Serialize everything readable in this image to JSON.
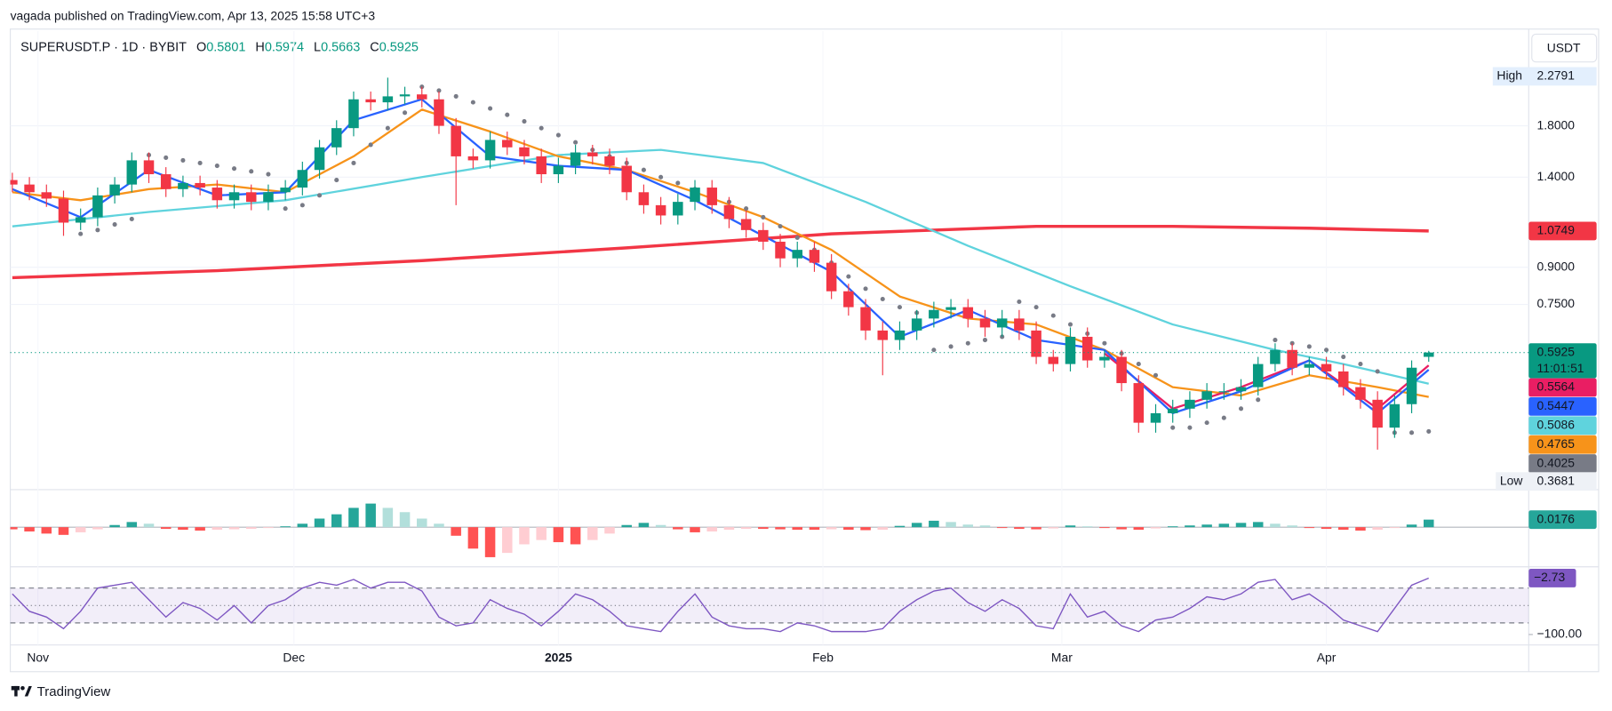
{
  "header": "vagada published on TradingView.com, Apr 13, 2025 15:58 UTC+3",
  "brand": "TradingView",
  "chart_data": {
    "type": "candlestick",
    "title": "SUPERUSDT.P · 1D · BYBIT",
    "ohlc_labels": [
      "O",
      "H",
      "L",
      "C"
    ],
    "currency": "USDT",
    "high_label": "High",
    "low_label": "Low",
    "countdown": "11:01:51",
    "log": true,
    "up_color": "#089981",
    "down_color": "#f23645",
    "open": [
      1.38,
      1.35,
      1.3,
      1.26,
      1.12,
      1.15,
      1.28,
      1.35,
      1.52,
      1.42,
      1.32,
      1.36,
      1.33,
      1.25,
      1.3,
      1.24,
      1.3,
      1.33,
      1.45,
      1.62,
      1.78,
      2.05,
      2.02,
      2.08,
      2.1,
      2.05,
      1.8,
      1.55,
      1.52,
      1.68,
      1.62,
      1.55,
      1.42,
      1.48,
      1.58,
      1.55,
      1.48,
      1.3,
      1.22,
      1.16,
      1.24,
      1.33,
      1.22,
      1.14,
      1.08,
      1.02,
      0.94,
      0.98,
      0.92,
      0.8,
      0.74,
      0.66,
      0.63,
      0.66,
      0.7,
      0.73,
      0.74,
      0.7,
      0.67,
      0.7,
      0.66,
      0.58,
      0.56,
      0.64,
      0.57,
      0.58,
      0.51,
      0.42,
      0.44,
      0.45,
      0.47,
      0.49,
      0.49,
      0.5,
      0.56,
      0.6,
      0.55,
      0.56,
      0.54,
      0.5,
      0.47,
      0.41,
      0.46,
      0.5801
    ],
    "high": [
      1.43,
      1.4,
      1.35,
      1.31,
      1.2,
      1.33,
      1.4,
      1.58,
      1.58,
      1.47,
      1.41,
      1.41,
      1.38,
      1.35,
      1.35,
      1.35,
      1.38,
      1.51,
      1.68,
      1.85,
      2.13,
      2.13,
      2.2791,
      2.18,
      2.18,
      2.13,
      1.87,
      1.61,
      1.75,
      1.75,
      1.68,
      1.61,
      1.54,
      1.64,
      1.64,
      1.61,
      1.54,
      1.35,
      1.27,
      1.29,
      1.38,
      1.38,
      1.27,
      1.19,
      1.12,
      1.06,
      1.02,
      1.02,
      0.96,
      0.83,
      0.77,
      0.69,
      0.69,
      0.73,
      0.76,
      0.77,
      0.77,
      0.73,
      0.73,
      0.73,
      0.69,
      0.6,
      0.67,
      0.67,
      0.6,
      0.6,
      0.53,
      0.46,
      0.47,
      0.49,
      0.51,
      0.51,
      0.52,
      0.58,
      0.62,
      0.62,
      0.58,
      0.58,
      0.56,
      0.52,
      0.49,
      0.48,
      0.57,
      0.5974
    ],
    "low": [
      1.3,
      1.25,
      1.21,
      1.05,
      1.08,
      1.1,
      1.23,
      1.3,
      1.36,
      1.27,
      1.27,
      1.28,
      1.2,
      1.2,
      1.19,
      1.19,
      1.25,
      1.28,
      1.39,
      1.56,
      1.71,
      1.94,
      1.94,
      2.0,
      1.97,
      1.73,
      1.22,
      1.46,
      1.46,
      1.56,
      1.49,
      1.36,
      1.36,
      1.42,
      1.49,
      1.42,
      1.25,
      1.17,
      1.11,
      1.11,
      1.19,
      1.17,
      1.09,
      1.04,
      0.98,
      0.9,
      0.9,
      0.88,
      0.77,
      0.71,
      0.63,
      0.53,
      0.6,
      0.63,
      0.67,
      0.7,
      0.67,
      0.64,
      0.64,
      0.63,
      0.56,
      0.54,
      0.54,
      0.55,
      0.55,
      0.49,
      0.4,
      0.4,
      0.42,
      0.43,
      0.45,
      0.47,
      0.47,
      0.48,
      0.54,
      0.53,
      0.53,
      0.52,
      0.48,
      0.45,
      0.3681,
      0.39,
      0.44,
      0.5663
    ],
    "close": [
      1.35,
      1.3,
      1.26,
      1.12,
      1.15,
      1.28,
      1.35,
      1.52,
      1.42,
      1.32,
      1.36,
      1.33,
      1.25,
      1.3,
      1.24,
      1.3,
      1.33,
      1.45,
      1.62,
      1.78,
      2.05,
      2.02,
      2.08,
      2.1,
      2.05,
      1.8,
      1.55,
      1.52,
      1.68,
      1.62,
      1.55,
      1.42,
      1.48,
      1.58,
      1.55,
      1.48,
      1.3,
      1.22,
      1.16,
      1.24,
      1.33,
      1.22,
      1.14,
      1.08,
      1.02,
      0.94,
      0.98,
      0.92,
      0.8,
      0.74,
      0.66,
      0.63,
      0.66,
      0.7,
      0.73,
      0.74,
      0.7,
      0.67,
      0.7,
      0.66,
      0.58,
      0.56,
      0.64,
      0.57,
      0.58,
      0.51,
      0.42,
      0.44,
      0.45,
      0.47,
      0.49,
      0.49,
      0.5,
      0.56,
      0.6,
      0.55,
      0.56,
      0.54,
      0.5,
      0.47,
      0.41,
      0.46,
      0.55,
      0.5925
    ],
    "xlim": [
      0,
      88.86
    ],
    "xticks": [
      {
        "value": 1.5,
        "label": "Nov"
      },
      {
        "value": 16.5,
        "label": "Dec"
      },
      {
        "value": 32,
        "label": "2025"
      },
      {
        "value": 47.5,
        "label": "Feb"
      },
      {
        "value": 61.5,
        "label": "Mar"
      },
      {
        "value": 77,
        "label": "Apr"
      }
    ],
    "ylim": [
      0.304,
      2.864
    ],
    "yticks": [
      {
        "value": 1.8,
        "label": "1.8000"
      },
      {
        "value": 1.4,
        "label": "1.4000"
      },
      {
        "value": 0.9,
        "label": "0.9000"
      },
      {
        "value": 0.75,
        "label": "0.7500"
      }
    ],
    "grid": true,
    "lines": [
      {
        "color": "#f23645",
        "width": 3,
        "x": [
          0,
          12,
          24,
          36,
          48,
          60,
          68,
          76,
          83
        ],
        "values": [
          0.855,
          0.885,
          0.93,
          0.99,
          1.06,
          1.1,
          1.1,
          1.09,
          1.0749
        ]
      },
      {
        "color": "#5fd3dd",
        "width": 2,
        "x": [
          0,
          8,
          16,
          24,
          32,
          38,
          44,
          50,
          56,
          62,
          68,
          74,
          78,
          83
        ],
        "values": [
          1.1,
          1.18,
          1.25,
          1.4,
          1.56,
          1.6,
          1.5,
          1.24,
          1.0,
          0.82,
          0.68,
          0.6,
          0.56,
          0.5086
        ]
      },
      {
        "color": "#f7931a",
        "width": 2,
        "x": [
          0,
          4,
          8,
          12,
          16,
          20,
          24,
          28,
          32,
          36,
          40,
          44,
          48,
          52,
          56,
          60,
          64,
          68,
          72,
          76,
          80,
          83
        ],
        "values": [
          1.3,
          1.25,
          1.32,
          1.35,
          1.3,
          1.55,
          1.95,
          1.75,
          1.55,
          1.45,
          1.3,
          1.15,
          0.98,
          0.78,
          0.7,
          0.68,
          0.6,
          0.5,
          0.48,
          0.53,
          0.5,
          0.4765
        ]
      },
      {
        "color": "#e91e63",
        "width": 2,
        "x": [
          64,
          68,
          72,
          76,
          80,
          83
        ],
        "values": [
          0.59,
          0.45,
          0.5,
          0.57,
          0.45,
          0.5564
        ]
      },
      {
        "color": "#2962ff",
        "width": 2,
        "x": [
          0,
          4,
          8,
          12,
          16,
          20,
          24,
          28,
          32,
          36,
          40,
          44,
          48,
          52,
          56,
          60,
          64,
          68,
          72,
          76,
          80,
          83
        ],
        "values": [
          1.32,
          1.15,
          1.45,
          1.28,
          1.3,
          1.85,
          2.05,
          1.55,
          1.48,
          1.45,
          1.25,
          1.05,
          0.88,
          0.64,
          0.73,
          0.63,
          0.6,
          0.44,
          0.49,
          0.57,
          0.44,
          0.5447
        ]
      }
    ],
    "sar": {
      "color": "#787b86",
      "values": [
        null,
        null,
        null,
        null,
        1.06,
        1.08,
        1.11,
        1.14,
        1.56,
        1.54,
        1.52,
        1.5,
        1.48,
        1.46,
        1.44,
        1.42,
        1.2,
        1.22,
        1.28,
        1.38,
        1.5,
        1.64,
        1.78,
        1.92,
        2.18,
        2.14,
        2.08,
        2.02,
        1.96,
        1.9,
        1.84,
        1.78,
        1.72,
        1.66,
        1.6,
        1.55,
        1.5,
        1.45,
        1.4,
        1.36,
        1.32,
        1.28,
        1.24,
        1.2,
        1.15,
        1.1,
        1.04,
        0.98,
        0.92,
        0.86,
        0.81,
        0.77,
        0.74,
        0.72,
        0.6,
        0.61,
        0.62,
        0.63,
        0.64,
        0.76,
        0.74,
        0.71,
        0.68,
        0.65,
        0.62,
        0.59,
        0.56,
        0.53,
        0.41,
        0.41,
        0.42,
        0.43,
        0.45,
        0.47,
        0.63,
        0.62,
        0.61,
        0.6,
        0.58,
        0.56,
        0.54,
        0.4,
        0.4,
        0.4025
      ]
    },
    "macd": {
      "ylim": [
        -0.09,
        0.085
      ],
      "values": [
        -0.005,
        -0.01,
        -0.015,
        -0.018,
        -0.012,
        -0.005,
        0.005,
        0.012,
        0.008,
        -0.004,
        -0.006,
        -0.008,
        -0.006,
        -0.005,
        -0.004,
        -0.002,
        0.002,
        0.008,
        0.02,
        0.03,
        0.045,
        0.055,
        0.045,
        0.035,
        0.02,
        0.008,
        -0.02,
        -0.05,
        -0.07,
        -0.06,
        -0.04,
        -0.03,
        -0.035,
        -0.04,
        -0.03,
        -0.015,
        0.005,
        0.01,
        0.005,
        -0.005,
        -0.012,
        -0.01,
        -0.006,
        -0.004,
        -0.004,
        -0.005,
        -0.006,
        -0.006,
        -0.005,
        -0.006,
        -0.007,
        -0.006,
        0.003,
        0.01,
        0.015,
        0.012,
        0.006,
        0.004,
        -0.002,
        -0.004,
        -0.005,
        -0.003,
        0.004,
        0.002,
        -0.002,
        -0.005,
        -0.006,
        -0.003,
        0.002,
        0.004,
        0.006,
        0.008,
        0.01,
        0.012,
        0.008,
        0.004,
        -0.002,
        -0.004,
        -0.006,
        -0.008,
        -0.006,
        -0.002,
        0.006,
        0.0176
      ]
    },
    "williams": {
      "color": "#7e57c2",
      "ylim": [
        -118,
        15
      ],
      "levels": [
        -20,
        -50,
        -80
      ],
      "yticks": [
        {
          "value": -100,
          "label": "−100.00"
        }
      ],
      "values": [
        -30,
        -60,
        -70,
        -90,
        -60,
        -20,
        -15,
        -10,
        -40,
        -70,
        -45,
        -55,
        -75,
        -50,
        -80,
        -50,
        -40,
        -20,
        -10,
        -15,
        -5,
        -20,
        -10,
        -10,
        -25,
        -70,
        -85,
        -80,
        -40,
        -55,
        -65,
        -85,
        -60,
        -30,
        -40,
        -60,
        -85,
        -90,
        -95,
        -60,
        -30,
        -70,
        -85,
        -90,
        -90,
        -95,
        -80,
        -85,
        -95,
        -95,
        -95,
        -90,
        -60,
        -40,
        -25,
        -20,
        -45,
        -60,
        -40,
        -55,
        -85,
        -90,
        -30,
        -70,
        -60,
        -85,
        -95,
        -75,
        -70,
        -55,
        -35,
        -40,
        -30,
        -10,
        -5,
        -40,
        -30,
        -50,
        -75,
        -85,
        -95,
        -55,
        -15,
        -2.73
      ],
      "value_labels": [
        null,
        null,
        null,
        null,
        null,
        null,
        null,
        null,
        null,
        null,
        null,
        null,
        null,
        null,
        null,
        null,
        null,
        null,
        null,
        null,
        null,
        null,
        null,
        null,
        null,
        null,
        null,
        null,
        null,
        null,
        null,
        null,
        null,
        null,
        null,
        null,
        null,
        null,
        null,
        null,
        null,
        null,
        null,
        null,
        null,
        null,
        null,
        null,
        null,
        null,
        null,
        null,
        null,
        null,
        null,
        null,
        null,
        null,
        null,
        null,
        null,
        null,
        null,
        null,
        null,
        null,
        null,
        null,
        null,
        null,
        null,
        null,
        null,
        null,
        null,
        null,
        null,
        null,
        null,
        null,
        null,
        null,
        null,
        "−2.73"
      ]
    }
  }
}
